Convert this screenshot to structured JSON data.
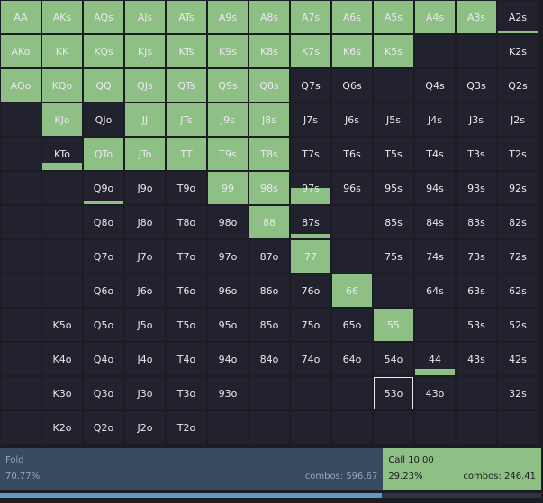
{
  "colors": {
    "empty_cell": "#21222d",
    "call_fill": "#8ebf85",
    "fold_bar": "#374b5e",
    "progress": "#5e9bc2"
  },
  "selected_hand": "53o",
  "grid": [
    [
      [
        "AA",
        1
      ],
      [
        "AKs",
        1
      ],
      [
        "AQs",
        1
      ],
      [
        "AJs",
        1
      ],
      [
        "ATs",
        1
      ],
      [
        "A9s",
        1
      ],
      [
        "A8s",
        1
      ],
      [
        "A7s",
        1
      ],
      [
        "A6s",
        1
      ],
      [
        "A5s",
        1
      ],
      [
        "A4s",
        1
      ],
      [
        "A3s",
        1
      ],
      [
        "A2s",
        0.06
      ]
    ],
    [
      [
        "AKo",
        1
      ],
      [
        "KK",
        1
      ],
      [
        "KQs",
        1
      ],
      [
        "KJs",
        1
      ],
      [
        "KTs",
        1
      ],
      [
        "K9s",
        1
      ],
      [
        "K8s",
        1
      ],
      [
        "K7s",
        1
      ],
      [
        "K6s",
        1
      ],
      [
        "K5s",
        1
      ],
      [
        "",
        0
      ],
      [
        "",
        0
      ],
      [
        "K2s",
        0
      ]
    ],
    [
      [
        "AQo",
        1
      ],
      [
        "KQo",
        1
      ],
      [
        "QQ",
        1
      ],
      [
        "QJs",
        1
      ],
      [
        "QTs",
        1
      ],
      [
        "Q9s",
        1
      ],
      [
        "Q8s",
        1
      ],
      [
        "Q7s",
        0
      ],
      [
        "Q6s",
        0
      ],
      [
        "",
        0
      ],
      [
        "Q4s",
        0
      ],
      [
        "Q3s",
        0
      ],
      [
        "Q2s",
        0
      ]
    ],
    [
      [
        "",
        0
      ],
      [
        "KJo",
        1
      ],
      [
        "QJo",
        0
      ],
      [
        "JJ",
        1
      ],
      [
        "JTs",
        1
      ],
      [
        "J9s",
        1
      ],
      [
        "J8s",
        1
      ],
      [
        "J7s",
        0
      ],
      [
        "J6s",
        0
      ],
      [
        "J5s",
        0
      ],
      [
        "J4s",
        0
      ],
      [
        "J3s",
        0
      ],
      [
        "J2s",
        0
      ]
    ],
    [
      [
        "",
        0
      ],
      [
        "KTo",
        0.22
      ],
      [
        "QTo",
        1
      ],
      [
        "JTo",
        1
      ],
      [
        "TT",
        1
      ],
      [
        "T9s",
        1
      ],
      [
        "T8s",
        1
      ],
      [
        "T7s",
        0
      ],
      [
        "T6s",
        0
      ],
      [
        "T5s",
        0
      ],
      [
        "T4s",
        0
      ],
      [
        "T3s",
        0
      ],
      [
        "T2s",
        0
      ]
    ],
    [
      [
        "",
        0
      ],
      [
        "",
        0
      ],
      [
        "Q9o",
        0.12
      ],
      [
        "J9o",
        0
      ],
      [
        "T9o",
        0
      ],
      [
        "99",
        1
      ],
      [
        "98s",
        1
      ],
      [
        "97s",
        0.5
      ],
      [
        "96s",
        0
      ],
      [
        "95s",
        0
      ],
      [
        "94s",
        0
      ],
      [
        "93s",
        0
      ],
      [
        "92s",
        0
      ]
    ],
    [
      [
        "",
        0
      ],
      [
        "",
        0
      ],
      [
        "Q8o",
        0
      ],
      [
        "J8o",
        0
      ],
      [
        "T8o",
        0
      ],
      [
        "98o",
        0
      ],
      [
        "88",
        1
      ],
      [
        "87s",
        0.15
      ],
      [
        "",
        0
      ],
      [
        "85s",
        0
      ],
      [
        "84s",
        0
      ],
      [
        "83s",
        0
      ],
      [
        "82s",
        0
      ]
    ],
    [
      [
        "",
        0
      ],
      [
        "",
        0
      ],
      [
        "Q7o",
        0
      ],
      [
        "J7o",
        0
      ],
      [
        "T7o",
        0
      ],
      [
        "97o",
        0
      ],
      [
        "87o",
        0
      ],
      [
        "77",
        1
      ],
      [
        "",
        0
      ],
      [
        "75s",
        0
      ],
      [
        "74s",
        0
      ],
      [
        "73s",
        0
      ],
      [
        "72s",
        0
      ]
    ],
    [
      [
        "",
        0
      ],
      [
        "",
        0
      ],
      [
        "Q6o",
        0
      ],
      [
        "J6o",
        0
      ],
      [
        "T6o",
        0
      ],
      [
        "96o",
        0
      ],
      [
        "86o",
        0
      ],
      [
        "76o",
        0
      ],
      [
        "66",
        1
      ],
      [
        "",
        0
      ],
      [
        "64s",
        0
      ],
      [
        "63s",
        0
      ],
      [
        "62s",
        0
      ]
    ],
    [
      [
        "",
        0
      ],
      [
        "K5o",
        0
      ],
      [
        "Q5o",
        0
      ],
      [
        "J5o",
        0
      ],
      [
        "T5o",
        0
      ],
      [
        "95o",
        0
      ],
      [
        "85o",
        0
      ],
      [
        "75o",
        0
      ],
      [
        "65o",
        0
      ],
      [
        "55",
        1
      ],
      [
        "",
        0
      ],
      [
        "53s",
        0
      ],
      [
        "52s",
        0
      ]
    ],
    [
      [
        "",
        0
      ],
      [
        "K4o",
        0
      ],
      [
        "Q4o",
        0
      ],
      [
        "J4o",
        0
      ],
      [
        "T4o",
        0
      ],
      [
        "94o",
        0
      ],
      [
        "84o",
        0
      ],
      [
        "74o",
        0
      ],
      [
        "64o",
        0
      ],
      [
        "54o",
        0
      ],
      [
        "44",
        0.2
      ],
      [
        "43s",
        0
      ],
      [
        "42s",
        0
      ]
    ],
    [
      [
        "",
        0
      ],
      [
        "K3o",
        0
      ],
      [
        "Q3o",
        0
      ],
      [
        "J3o",
        0
      ],
      [
        "T3o",
        0
      ],
      [
        "93o",
        0
      ],
      [
        "",
        0
      ],
      [
        "",
        0
      ],
      [
        "",
        0
      ],
      [
        "53o",
        0
      ],
      [
        "43o",
        0
      ],
      [
        "",
        0
      ],
      [
        "32s",
        0
      ]
    ],
    [
      [
        "",
        0
      ],
      [
        "K2o",
        0
      ],
      [
        "Q2o",
        0
      ],
      [
        "J2o",
        0
      ],
      [
        "T2o",
        0
      ],
      [
        "",
        0
      ],
      [
        "",
        0
      ],
      [
        "",
        0
      ],
      [
        "",
        0
      ],
      [
        "",
        0
      ],
      [
        "",
        0
      ],
      [
        "",
        0
      ],
      [
        "",
        0
      ]
    ]
  ],
  "actions": {
    "fold": {
      "name": "Fold",
      "percent": "70.77%",
      "combos": "combos: 596.67",
      "fraction": 0.7077
    },
    "call": {
      "name": "Call 10.00",
      "percent": "29.23%",
      "combos": "combos: 246.41",
      "fraction": 0.2923
    }
  },
  "progress": {
    "fraction": 0.705
  }
}
